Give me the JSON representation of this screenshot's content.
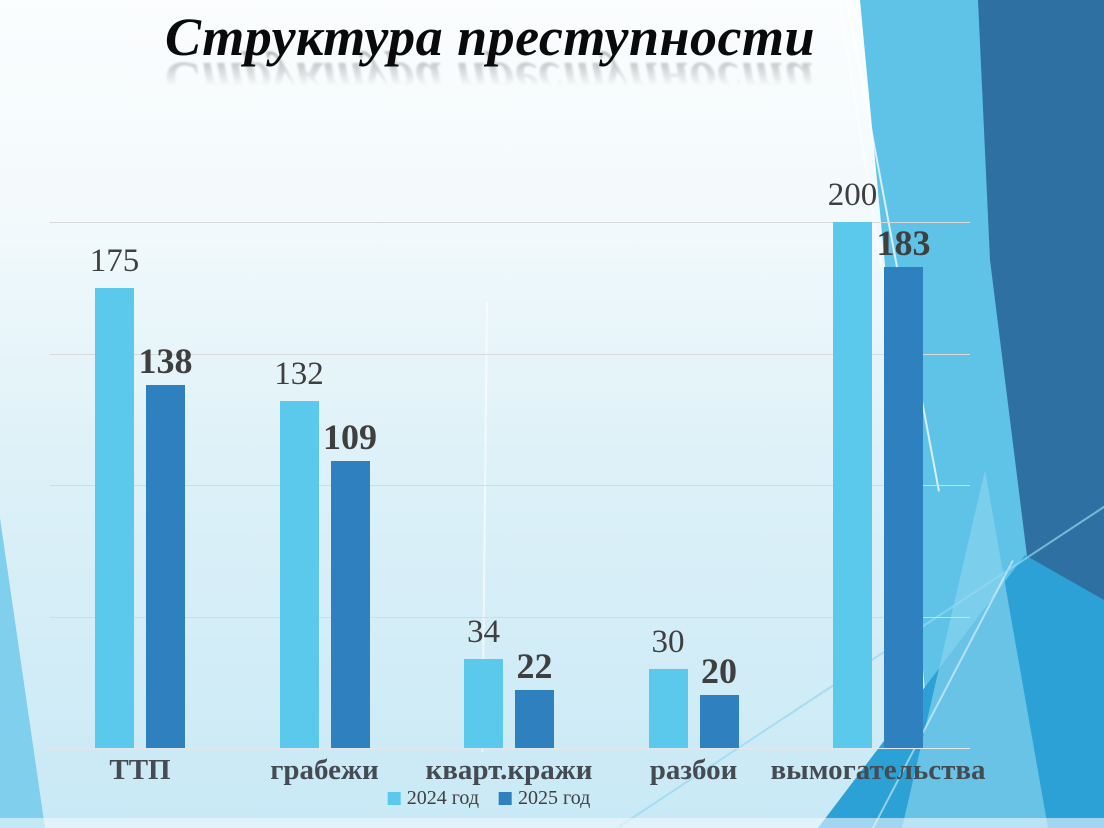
{
  "title": "Структура преступности",
  "chart_data": {
    "type": "bar",
    "title": "Структура преступности",
    "categories": [
      "ТТП",
      "грабежи",
      "кварт.кражи",
      "разбои",
      "вымогательства"
    ],
    "series": [
      {
        "name": "2024 год",
        "values": [
          175,
          132,
          34,
          30,
          200
        ],
        "color": "#5BC9EB"
      },
      {
        "name": "2025 год",
        "values": [
          138,
          109,
          22,
          20,
          183
        ],
        "color": "#2E80BE"
      }
    ],
    "xlabel": "",
    "ylabel": "",
    "ylim": [
      0,
      200
    ],
    "grid_step": 50,
    "grid": "horizontal-only",
    "y_tick_labels_visible": false,
    "value_labels": "above-bars",
    "legend_position": "bottom-center"
  },
  "legend": {
    "items": [
      {
        "label": "2024 год",
        "color": "#5BC9EB"
      },
      {
        "label": "2025 год",
        "color": "#2E80BE"
      }
    ]
  },
  "colors": {
    "series_2024": "#5BC9EB",
    "series_2025": "#2E80BE",
    "gridline": "#D9D9D9",
    "value_label": "#3F3F3F",
    "category_label": "#454B52",
    "title_text": "#0A0A0C",
    "deco_dark": "#2F70A3",
    "deco_medium": "#5FC2E7",
    "deco_bright": "#2BA1D6",
    "deco_light": "#8AD5EF",
    "deco_left_wedge": "#80CFEC"
  }
}
